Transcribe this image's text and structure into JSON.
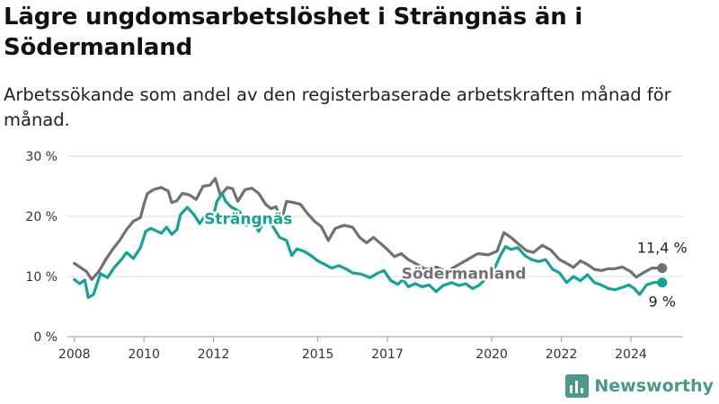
{
  "title": "Lägre ungdomsarbetslöshet i Strängnäs än i Södermanland",
  "subtitle": "Arbetssökande som andel av den registerbaserade arbetskraften månad för månad.",
  "brand": {
    "name": "Newsworthy",
    "icon": "newsworthy-logo-icon",
    "color": "#4a9a8a"
  },
  "chart_data": {
    "type": "line",
    "title": "Lägre ungdomsarbetslöshet i Strängnäs än i Södermanland",
    "subtitle": "Arbetssökande som andel av den registerbaserade arbetskraften månad för månad.",
    "xlabel": "",
    "ylabel": "",
    "xlim": [
      2007.8,
      2025.5
    ],
    "ylim": [
      0,
      30
    ],
    "x_ticks": [
      2008,
      2010,
      2012,
      2015,
      2017,
      2020,
      2022,
      2024
    ],
    "y_ticks": [
      {
        "value": 0,
        "label": "0 %"
      },
      {
        "value": 10,
        "label": "10 %"
      },
      {
        "value": 20,
        "label": "20 %"
      },
      {
        "value": 30,
        "label": "30 %"
      }
    ],
    "grid": "horizontal",
    "legend": "inline labels",
    "series": [
      {
        "name": "Södermanland",
        "color": "#717175",
        "end_label": "11,4 %",
        "points": [
          [
            2008.0,
            12.2
          ],
          [
            2008.2,
            11.4
          ],
          [
            2008.35,
            10.8
          ],
          [
            2008.5,
            9.5
          ],
          [
            2008.7,
            10.8
          ],
          [
            2008.9,
            12.8
          ],
          [
            2009.1,
            14.5
          ],
          [
            2009.3,
            16.0
          ],
          [
            2009.5,
            17.8
          ],
          [
            2009.7,
            19.2
          ],
          [
            2009.9,
            19.8
          ],
          [
            2010.0,
            22.0
          ],
          [
            2010.1,
            23.8
          ],
          [
            2010.3,
            24.5
          ],
          [
            2010.5,
            24.8
          ],
          [
            2010.7,
            24.2
          ],
          [
            2010.8,
            22.3
          ],
          [
            2010.95,
            22.6
          ],
          [
            2011.1,
            23.8
          ],
          [
            2011.3,
            23.6
          ],
          [
            2011.5,
            22.8
          ],
          [
            2011.7,
            25.0
          ],
          [
            2011.9,
            25.2
          ],
          [
            2012.05,
            26.3
          ],
          [
            2012.2,
            23.5
          ],
          [
            2012.4,
            24.8
          ],
          [
            2012.55,
            24.6
          ],
          [
            2012.7,
            22.5
          ],
          [
            2012.9,
            24.4
          ],
          [
            2013.1,
            24.7
          ],
          [
            2013.3,
            23.8
          ],
          [
            2013.5,
            22.0
          ],
          [
            2013.65,
            21.3
          ],
          [
            2013.8,
            21.6
          ],
          [
            2013.95,
            19.2
          ],
          [
            2014.1,
            22.5
          ],
          [
            2014.3,
            22.3
          ],
          [
            2014.5,
            22.0
          ],
          [
            2014.7,
            20.5
          ],
          [
            2014.9,
            19.2
          ],
          [
            2015.1,
            18.3
          ],
          [
            2015.3,
            16.0
          ],
          [
            2015.5,
            18.0
          ],
          [
            2015.75,
            18.5
          ],
          [
            2016.0,
            18.2
          ],
          [
            2016.2,
            16.5
          ],
          [
            2016.4,
            15.6
          ],
          [
            2016.6,
            16.5
          ],
          [
            2016.8,
            15.5
          ],
          [
            2017.0,
            14.5
          ],
          [
            2017.2,
            13.3
          ],
          [
            2017.4,
            13.8
          ],
          [
            2017.6,
            12.8
          ],
          [
            2017.8,
            12.2
          ],
          [
            2018.1,
            11.2
          ],
          [
            2018.4,
            11.6
          ],
          [
            2018.7,
            10.8
          ],
          [
            2019.0,
            11.8
          ],
          [
            2019.3,
            12.8
          ],
          [
            2019.6,
            13.8
          ],
          [
            2019.9,
            13.6
          ],
          [
            2020.15,
            14.2
          ],
          [
            2020.35,
            17.3
          ],
          [
            2020.55,
            16.5
          ],
          [
            2020.75,
            15.5
          ],
          [
            2021.0,
            14.3
          ],
          [
            2021.2,
            14.0
          ],
          [
            2021.45,
            15.2
          ],
          [
            2021.7,
            14.4
          ],
          [
            2021.95,
            12.8
          ],
          [
            2022.15,
            12.2
          ],
          [
            2022.35,
            11.5
          ],
          [
            2022.55,
            12.6
          ],
          [
            2022.75,
            12.0
          ],
          [
            2022.95,
            11.2
          ],
          [
            2023.15,
            11.0
          ],
          [
            2023.35,
            11.3
          ],
          [
            2023.55,
            11.3
          ],
          [
            2023.75,
            11.6
          ],
          [
            2024.0,
            10.8
          ],
          [
            2024.15,
            9.9
          ],
          [
            2024.35,
            10.6
          ],
          [
            2024.6,
            11.4
          ],
          [
            2024.9,
            11.4
          ]
        ]
      },
      {
        "name": "Strängnäs",
        "color": "#14a394",
        "end_label": "9 %",
        "points": [
          [
            2008.0,
            9.5
          ],
          [
            2008.15,
            8.8
          ],
          [
            2008.3,
            9.4
          ],
          [
            2008.4,
            6.5
          ],
          [
            2008.55,
            7.0
          ],
          [
            2008.75,
            10.5
          ],
          [
            2008.95,
            9.8
          ],
          [
            2009.15,
            11.5
          ],
          [
            2009.35,
            12.8
          ],
          [
            2009.5,
            14.0
          ],
          [
            2009.7,
            13.0
          ],
          [
            2009.9,
            14.8
          ],
          [
            2010.05,
            17.5
          ],
          [
            2010.2,
            18.0
          ],
          [
            2010.35,
            17.6
          ],
          [
            2010.5,
            17.2
          ],
          [
            2010.65,
            18.2
          ],
          [
            2010.8,
            17.0
          ],
          [
            2010.95,
            17.8
          ],
          [
            2011.05,
            20.3
          ],
          [
            2011.25,
            21.5
          ],
          [
            2011.45,
            20.2
          ],
          [
            2011.6,
            18.8
          ],
          [
            2011.8,
            20.4
          ],
          [
            2011.95,
            19.0
          ],
          [
            2012.1,
            22.5
          ],
          [
            2012.25,
            23.8
          ],
          [
            2012.35,
            22.5
          ],
          [
            2012.5,
            21.6
          ],
          [
            2012.75,
            20.8
          ],
          [
            2012.95,
            18.5
          ],
          [
            2013.15,
            19.2
          ],
          [
            2013.3,
            17.5
          ],
          [
            2013.5,
            19.8
          ],
          [
            2013.7,
            18.4
          ],
          [
            2013.9,
            16.5
          ],
          [
            2014.1,
            16.0
          ],
          [
            2014.25,
            13.5
          ],
          [
            2014.4,
            14.6
          ],
          [
            2014.6,
            14.2
          ],
          [
            2014.8,
            13.5
          ],
          [
            2015.0,
            12.6
          ],
          [
            2015.2,
            12.0
          ],
          [
            2015.4,
            11.4
          ],
          [
            2015.6,
            11.8
          ],
          [
            2015.8,
            11.3
          ],
          [
            2016.0,
            10.6
          ],
          [
            2016.25,
            10.4
          ],
          [
            2016.5,
            9.8
          ],
          [
            2016.7,
            10.5
          ],
          [
            2016.9,
            11.0
          ],
          [
            2017.1,
            9.3
          ],
          [
            2017.3,
            8.7
          ],
          [
            2017.45,
            9.5
          ],
          [
            2017.6,
            8.3
          ],
          [
            2017.8,
            8.8
          ],
          [
            2018.0,
            8.3
          ],
          [
            2018.2,
            8.6
          ],
          [
            2018.4,
            7.5
          ],
          [
            2018.6,
            8.5
          ],
          [
            2018.85,
            9.0
          ],
          [
            2019.05,
            8.5
          ],
          [
            2019.25,
            8.8
          ],
          [
            2019.45,
            8.0
          ],
          [
            2019.65,
            8.6
          ],
          [
            2019.85,
            9.8
          ],
          [
            2020.05,
            11.0
          ],
          [
            2020.25,
            13.5
          ],
          [
            2020.4,
            15.0
          ],
          [
            2020.55,
            14.5
          ],
          [
            2020.75,
            14.8
          ],
          [
            2020.95,
            13.5
          ],
          [
            2021.15,
            12.8
          ],
          [
            2021.35,
            12.5
          ],
          [
            2021.55,
            12.8
          ],
          [
            2021.75,
            11.2
          ],
          [
            2021.95,
            10.6
          ],
          [
            2022.15,
            9.0
          ],
          [
            2022.35,
            10.0
          ],
          [
            2022.55,
            9.3
          ],
          [
            2022.75,
            10.3
          ],
          [
            2022.95,
            9.0
          ],
          [
            2023.15,
            8.6
          ],
          [
            2023.35,
            8.0
          ],
          [
            2023.55,
            7.8
          ],
          [
            2023.75,
            8.2
          ],
          [
            2023.95,
            8.6
          ],
          [
            2024.1,
            8.0
          ],
          [
            2024.25,
            7.0
          ],
          [
            2024.45,
            8.6
          ],
          [
            2024.65,
            9.0
          ],
          [
            2024.9,
            9.0
          ]
        ]
      }
    ]
  }
}
